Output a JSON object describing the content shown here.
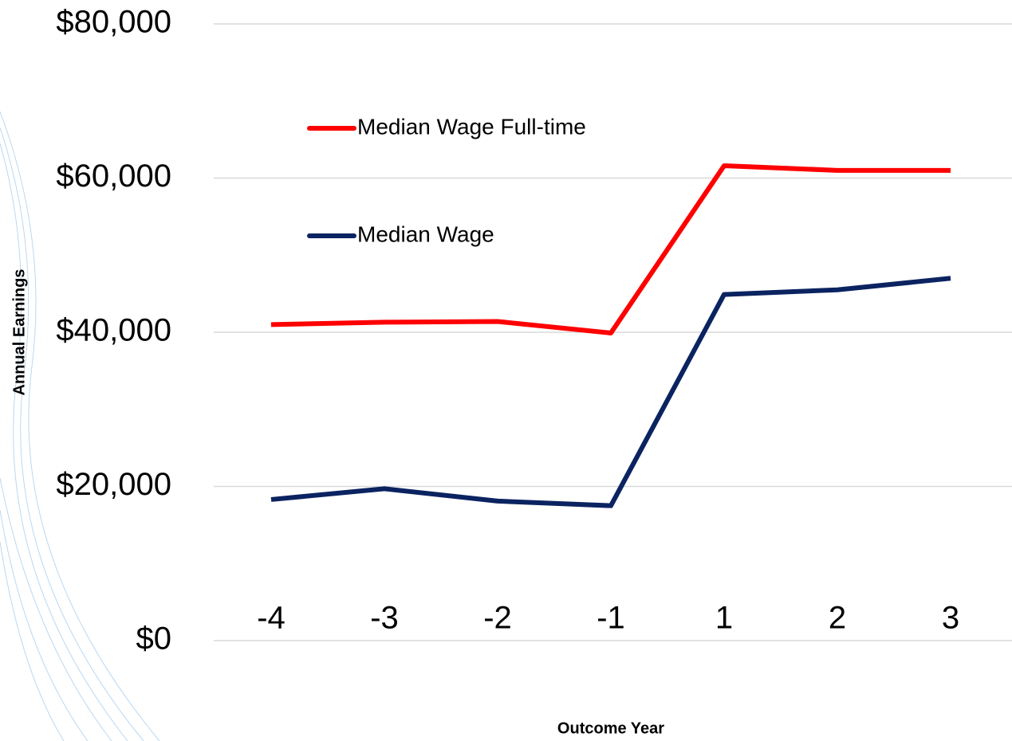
{
  "chart_data": {
    "type": "line",
    "categories": [
      "-4",
      "-3",
      "-2",
      "-1",
      "1",
      "2",
      "3"
    ],
    "series": [
      {
        "name": "Median Wage Full-time",
        "color": "#ff0000",
        "values": [
          41000,
          41300,
          41400,
          39900,
          61600,
          61000,
          61000
        ]
      },
      {
        "name": "Median Wage",
        "color": "#0b2360",
        "values": [
          18300,
          19700,
          18100,
          17500,
          44900,
          45500,
          47000
        ]
      }
    ],
    "x_label": "Outcome Year",
    "y_label": "Annual Earnings",
    "ylim": [
      0,
      80000
    ],
    "yticks": [
      {
        "value": 0,
        "label": "$0"
      },
      {
        "value": 20000,
        "label": "$20,000"
      },
      {
        "value": 40000,
        "label": "$40,000"
      },
      {
        "value": 60000,
        "label": "$60,000"
      },
      {
        "value": 80000,
        "label": "$80,000"
      }
    ],
    "grid": true,
    "legend": "upper left"
  }
}
